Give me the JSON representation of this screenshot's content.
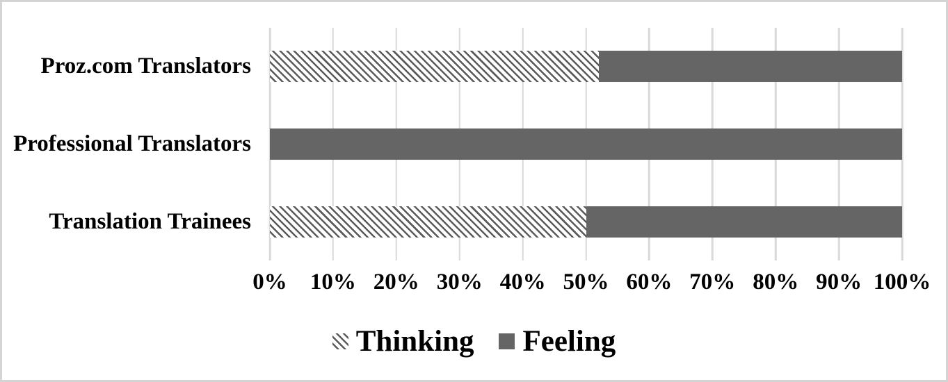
{
  "chart_data": {
    "type": "bar",
    "orientation": "horizontal",
    "stacked": true,
    "title": "",
    "xlabel": "",
    "ylabel": "",
    "categories": [
      "Proz.com Translators",
      "Professional Translators",
      "Translation Trainees"
    ],
    "series": [
      {
        "name": "Thinking",
        "style": "hatch",
        "values": [
          52,
          0,
          50
        ]
      },
      {
        "name": "Feeling",
        "style": "solid",
        "values": [
          48,
          100,
          50
        ]
      }
    ],
    "x_ticks": [
      "0%",
      "10%",
      "20%",
      "30%",
      "40%",
      "50%",
      "60%",
      "70%",
      "80%",
      "90%",
      "100%"
    ],
    "xlim": [
      0,
      100
    ],
    "grid": true,
    "legend_position": "bottom"
  },
  "colors": {
    "solid_fill": "#656565",
    "hatch_stroke": "#5a5a5a",
    "gridline": "#d9d9d9",
    "text": "#000000",
    "frame_border": "#d4d4d4",
    "background": "#ffffff"
  }
}
